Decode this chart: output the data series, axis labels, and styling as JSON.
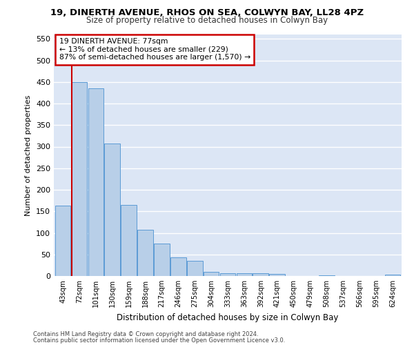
{
  "title_line1": "19, DINERTH AVENUE, RHOS ON SEA, COLWYN BAY, LL28 4PZ",
  "title_line2": "Size of property relative to detached houses in Colwyn Bay",
  "xlabel": "Distribution of detached houses by size in Colwyn Bay",
  "ylabel": "Number of detached properties",
  "footer_line1": "Contains HM Land Registry data © Crown copyright and database right 2024.",
  "footer_line2": "Contains public sector information licensed under the Open Government Licence v3.0.",
  "categories": [
    "43sqm",
    "72sqm",
    "101sqm",
    "130sqm",
    "159sqm",
    "188sqm",
    "217sqm",
    "246sqm",
    "275sqm",
    "304sqm",
    "333sqm",
    "363sqm",
    "392sqm",
    "421sqm",
    "450sqm",
    "479sqm",
    "508sqm",
    "537sqm",
    "566sqm",
    "595sqm",
    "624sqm"
  ],
  "values": [
    163,
    450,
    435,
    307,
    165,
    107,
    75,
    43,
    36,
    10,
    6,
    7,
    6,
    5,
    0,
    0,
    2,
    0,
    0,
    0,
    4
  ],
  "bar_color": "#b8cfe8",
  "bar_edge_color": "#5b9bd5",
  "property_line_label": "19 DINERTH AVENUE: 77sqm",
  "annotation_line1": "← 13% of detached houses are smaller (229)",
  "annotation_line2": "87% of semi-detached houses are larger (1,570) →",
  "annotation_box_color": "#ffffff",
  "annotation_box_edge_color": "#cc0000",
  "ylim": [
    0,
    560
  ],
  "yticks": [
    0,
    50,
    100,
    150,
    200,
    250,
    300,
    350,
    400,
    450,
    500,
    550
  ],
  "fig_bg_color": "#ffffff",
  "plot_bg_color": "#dce6f5",
  "grid_color": "#ffffff",
  "red_line_color": "#cc0000"
}
